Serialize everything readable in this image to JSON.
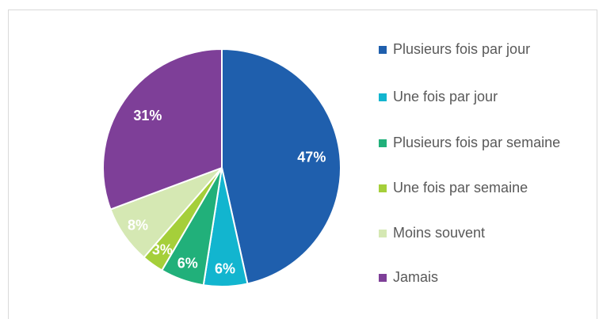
{
  "chart_data": {
    "type": "pie",
    "categories": [
      "Plusieurs fois par jour",
      "Une fois par jour",
      "Plusieurs fois par semaine",
      "Une fois par semaine",
      "Moins souvent",
      "Jamais"
    ],
    "values": [
      47,
      6,
      6,
      3,
      8,
      31
    ],
    "value_labels": [
      "47%",
      "6%",
      "6%",
      "3%",
      "8%",
      "31%"
    ],
    "colors": [
      "#1f5fad",
      "#12b5cf",
      "#21b07a",
      "#a5cf3a",
      "#d5e8b3",
      "#7e3f98"
    ],
    "legend": "right"
  }
}
